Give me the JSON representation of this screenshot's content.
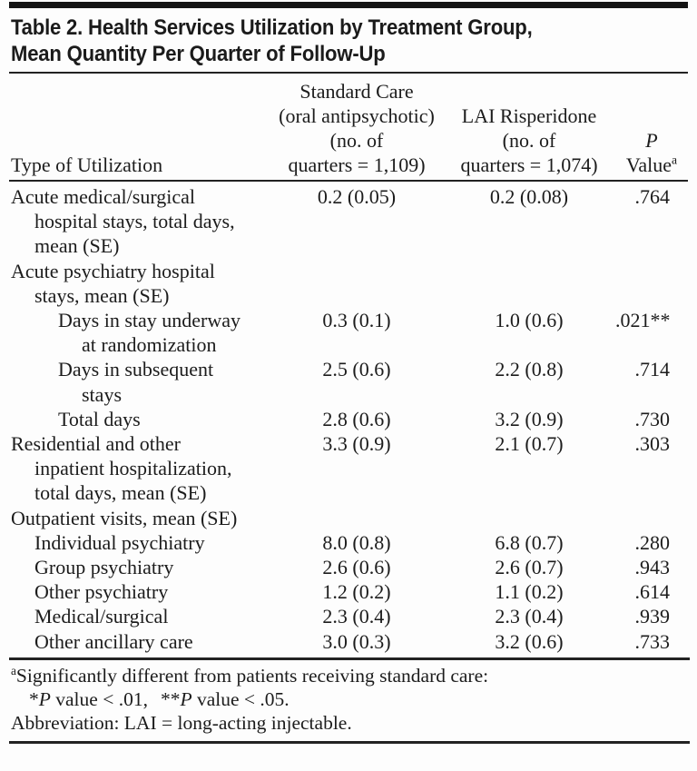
{
  "title": {
    "line1": "Table 2. Health Services Utilization by Treatment Group,",
    "line2": "Mean Quantity Per Quarter of Follow-Up"
  },
  "header": {
    "type_col": "Type of Utilization",
    "standard_care": {
      "l1": "Standard Care",
      "l2": "(oral antipsychotic)",
      "l3": "(no. of",
      "l4": "quarters = 1,109)"
    },
    "lai": {
      "l1": "LAI Risperidone",
      "l2": "(no. of",
      "l3": "quarters = 1,074)"
    },
    "p": {
      "l1": "P",
      "l2": "Value",
      "sup": "a"
    }
  },
  "chart_data": {
    "type": "table",
    "title": "Table 2. Health Services Utilization by Treatment Group, Mean Quantity Per Quarter of Follow-Up",
    "columns": [
      "Type of Utilization",
      "Standard Care (oral antipsychotic) (no. of quarters = 1,109)",
      "LAI Risperidone (no. of quarters = 1,074)",
      "P Value"
    ]
  },
  "table": {
    "rows": [
      {
        "label": [
          "Acute medical/surgical",
          "hospital stays, total days,",
          "mean (SE)"
        ],
        "indent": [
          0,
          1,
          1
        ],
        "standard_care": "0.2 (0.05)",
        "lai_risperidone": "0.2 (0.08)",
        "p_value": ".764"
      },
      {
        "label": [
          "Acute psychiatry hospital",
          "stays, mean (SE)"
        ],
        "indent": [
          0,
          1
        ]
      },
      {
        "label": [
          "Days in stay underway",
          "at randomization"
        ],
        "indent": [
          2,
          3
        ],
        "standard_care": "0.3 (0.1)",
        "lai_risperidone": "1.0 (0.6)",
        "p_value": ".021**"
      },
      {
        "label": [
          "Days in subsequent",
          "stays"
        ],
        "indent": [
          2,
          3
        ],
        "standard_care": "2.5 (0.6)",
        "lai_risperidone": "2.2 (0.8)",
        "p_value": ".714"
      },
      {
        "label": [
          "Total days"
        ],
        "indent": [
          2
        ],
        "standard_care": "2.8 (0.6)",
        "lai_risperidone": "3.2 (0.9)",
        "p_value": ".730"
      },
      {
        "label": [
          "Residential and other",
          "inpatient hospitalization,",
          "total days, mean (SE)"
        ],
        "indent": [
          0,
          1,
          1
        ],
        "standard_care": "3.3 (0.9)",
        "lai_risperidone": "2.1 (0.7)",
        "p_value": ".303"
      },
      {
        "label": [
          "Outpatient visits, mean (SE)"
        ],
        "indent": [
          0
        ]
      },
      {
        "label": [
          "Individual psychiatry"
        ],
        "indent": [
          1
        ],
        "standard_care": "8.0 (0.8)",
        "lai_risperidone": "6.8 (0.7)",
        "p_value": ".280"
      },
      {
        "label": [
          "Group psychiatry"
        ],
        "indent": [
          1
        ],
        "standard_care": "2.6 (0.6)",
        "lai_risperidone": "2.6 (0.7)",
        "p_value": ".943"
      },
      {
        "label": [
          "Other psychiatry"
        ],
        "indent": [
          1
        ],
        "standard_care": "1.2 (0.2)",
        "lai_risperidone": "1.1 (0.2)",
        "p_value": ".614"
      },
      {
        "label": [
          "Medical/surgical"
        ],
        "indent": [
          1
        ],
        "standard_care": "2.3 (0.4)",
        "lai_risperidone": "2.3 (0.4)",
        "p_value": ".939"
      },
      {
        "label": [
          "Other ancillary care"
        ],
        "indent": [
          1
        ],
        "standard_care": "3.0 (0.3)",
        "lai_risperidone": "3.2 (0.6)",
        "p_value": ".733"
      }
    ]
  },
  "footnotes": {
    "fn1": {
      "sup": "a",
      "text": "Significantly different from patients receiving standard care:"
    },
    "fn2": {
      "s1": "*",
      "p1": "P",
      "t1": " value < .01,",
      "s2": "**",
      "p2": "P",
      "t2": " value < .05."
    },
    "fn3": "Abbreviation: LAI = long-acting injectable."
  },
  "colors": {
    "text": "#1c1c1c",
    "rule": "#222222",
    "background": "#fdfdfd"
  }
}
